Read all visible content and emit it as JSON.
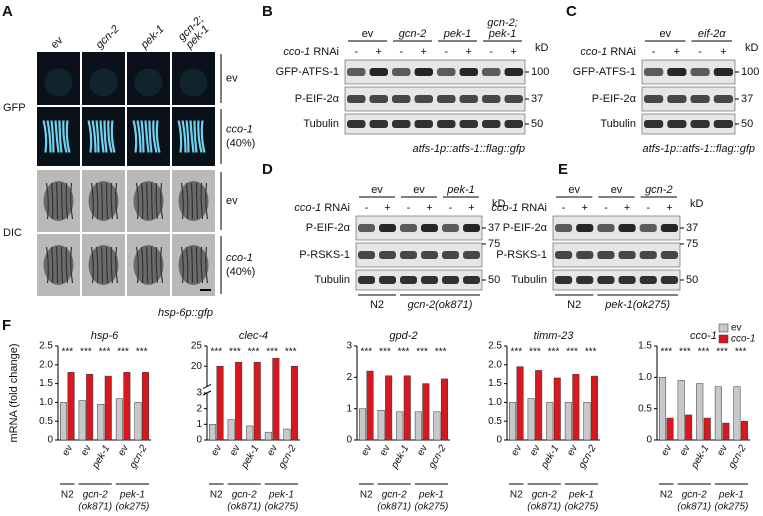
{
  "panel_a": {
    "label": "A",
    "columns": [
      [
        "ev"
      ],
      [
        "gcn-2"
      ],
      [
        "pek-1"
      ],
      [
        "gcn-2;",
        "pek-1"
      ]
    ],
    "channels": [
      "GFP",
      "DIC"
    ],
    "conditions": [
      {
        "name": "ev"
      },
      {
        "name": "cco-1",
        "note": "(40%)"
      }
    ],
    "footer": "hsp-6p::gfp"
  },
  "panel_b": {
    "label": "B",
    "genotypes": [
      [
        "ev"
      ],
      [
        "gcn-2"
      ],
      [
        "pek-1"
      ],
      [
        "gcn-2;",
        "pek-1"
      ]
    ],
    "rnai": {
      "gene": "cco-1",
      "text": "RNAi"
    },
    "lanes": [
      "-",
      "+",
      "-",
      "+",
      "-",
      "+",
      "-",
      "+"
    ],
    "kd": "kD",
    "rows": [
      {
        "name": "GFP-ATFS-1",
        "marker": 100
      },
      {
        "name": "P-EIF-2α",
        "marker": 37
      },
      {
        "name": "Tubulin",
        "marker": 50
      }
    ],
    "footer": "atfs-1p::atfs-1::flag::gfp"
  },
  "panel_c": {
    "label": "C",
    "genotypes": [
      [
        "ev"
      ],
      [
        "eif-2α"
      ]
    ],
    "rnai": {
      "gene": "cco-1",
      "text": "RNAi"
    },
    "lanes": [
      "-",
      "+",
      "-",
      "+"
    ],
    "kd": "kD",
    "rows": [
      {
        "name": "GFP-ATFS-1",
        "marker": 100
      },
      {
        "name": "P-EIF-2α",
        "marker": 37
      },
      {
        "name": "Tubulin",
        "marker": 50
      }
    ],
    "footer": "atfs-1p::atfs-1::flag::gfp"
  },
  "panel_d": {
    "label": "D",
    "genotypes": [
      [
        "ev"
      ],
      [
        "ev"
      ],
      [
        "pek-1"
      ]
    ],
    "rnai": {
      "gene": "cco-1",
      "text": "RNAi"
    },
    "lanes": [
      "-",
      "+",
      "-",
      "+",
      "-",
      "+"
    ],
    "kd": "kD",
    "rows": [
      {
        "name": "P-EIF-2α",
        "marker": 37
      },
      {
        "name": "P-RSKS-1",
        "marker": 75
      },
      {
        "name": "Tubulin",
        "marker": 50
      }
    ],
    "strains": [
      "N2",
      "gcn-2(ok871)"
    ]
  },
  "panel_e": {
    "label": "E",
    "genotypes": [
      [
        "ev"
      ],
      [
        "ev"
      ],
      [
        "gcn-2"
      ]
    ],
    "rnai": {
      "gene": "cco-1",
      "text": "RNAi"
    },
    "lanes": [
      "-",
      "+",
      "-",
      "+",
      "-",
      "+"
    ],
    "kd": "kD",
    "rows": [
      {
        "name": "P-EIF-2α",
        "marker": 37
      },
      {
        "name": "P-RSKS-1",
        "marker": 75
      },
      {
        "name": "Tubulin",
        "marker": 50
      }
    ],
    "strains": [
      "N2",
      "pek-1(ok275)"
    ]
  },
  "panel_f": {
    "label": "F"
  },
  "chart_data": [
    {
      "type": "bar",
      "title": "hsp-6",
      "ylabel": "mRNA (fold change)",
      "categories": [
        "ev",
        "ev",
        "pek-1",
        "ev",
        "gcn-2"
      ],
      "groups": [
        {
          "name": "N2"
        },
        {
          "name": "gcn-2",
          "allele": "(ok871)"
        },
        {
          "name": "pek-1",
          "allele": "(ok275)"
        }
      ],
      "series": [
        {
          "name": "ev",
          "color": "#c8c8c8",
          "values": [
            1.0,
            1.05,
            0.95,
            1.1,
            1.0
          ]
        },
        {
          "name": "cco-1",
          "color": "#d7191f",
          "values": [
            1.8,
            1.75,
            1.7,
            1.8,
            1.8
          ]
        }
      ],
      "significance": [
        "***",
        "***",
        "***",
        "***",
        "***"
      ],
      "ylim": [
        0,
        2.5
      ],
      "yticks": [
        0,
        0.5,
        {
          "value": 1,
          "label": "1.0"
        },
        1.5,
        {
          "value": 2,
          "label": "2.0"
        },
        2.5
      ]
    },
    {
      "type": "bar",
      "title": "clec-4",
      "categories": [
        "ev",
        "ev",
        "pek-1",
        "ev",
        "gcn-2"
      ],
      "groups": [
        {
          "name": "N2"
        },
        {
          "name": "gcn-2",
          "allele": "(ok871)"
        },
        {
          "name": "pek-1",
          "allele": "(ok275)"
        }
      ],
      "series": [
        {
          "name": "ev",
          "color": "#c8c8c8",
          "values": [
            1.0,
            1.3,
            0.9,
            0.5,
            0.7
          ]
        },
        {
          "name": "cco-1",
          "color": "#d7191f",
          "values": [
            20,
            21,
            21,
            22,
            20
          ]
        }
      ],
      "significance": [
        "***",
        "***",
        "***",
        "***",
        "***"
      ],
      "ylim": [
        0,
        25
      ],
      "ybreak": [
        3,
        15
      ],
      "yticks": [
        0,
        1,
        2,
        3,
        20,
        25
      ]
    },
    {
      "type": "bar",
      "title": "gpd-2",
      "categories": [
        "ev",
        "ev",
        "pek-1",
        "ev",
        "gcn-2"
      ],
      "groups": [
        {
          "name": "N2"
        },
        {
          "name": "gcn-2",
          "allele": "(ok871)"
        },
        {
          "name": "pek-1",
          "allele": "(ok275)"
        }
      ],
      "series": [
        {
          "name": "ev",
          "color": "#c8c8c8",
          "values": [
            1.0,
            0.95,
            0.9,
            0.9,
            0.9
          ]
        },
        {
          "name": "cco-1",
          "color": "#d7191f",
          "values": [
            2.2,
            2.05,
            2.05,
            1.8,
            1.95
          ]
        }
      ],
      "significance": [
        "***",
        "***",
        "***",
        "***",
        "***"
      ],
      "ylim": [
        0,
        3
      ],
      "yticks": [
        0,
        1,
        2,
        3
      ]
    },
    {
      "type": "bar",
      "title": "timm-23",
      "categories": [
        "ev",
        "ev",
        "pek-1",
        "ev",
        "gcn-2"
      ],
      "groups": [
        {
          "name": "N2"
        },
        {
          "name": "gcn-2",
          "allele": "(ok871)"
        },
        {
          "name": "pek-1",
          "allele": "(ok275)"
        }
      ],
      "series": [
        {
          "name": "ev",
          "color": "#c8c8c8",
          "values": [
            1.0,
            1.1,
            1.0,
            1.0,
            1.0
          ]
        },
        {
          "name": "cco-1",
          "color": "#d7191f",
          "values": [
            1.95,
            1.85,
            1.65,
            1.75,
            1.7
          ]
        }
      ],
      "significance": [
        "***",
        "***",
        "***",
        "***",
        "***"
      ],
      "ylim": [
        0,
        2.5
      ],
      "yticks": [
        0,
        0.5,
        {
          "value": 1,
          "label": "1.0"
        },
        1.5,
        {
          "value": 2,
          "label": "2.0"
        },
        2.5
      ]
    },
    {
      "type": "bar",
      "title": "cco-1",
      "legend": "upper right",
      "categories": [
        "ev",
        "ev",
        "pek-1",
        "ev",
        "gcn-2"
      ],
      "groups": [
        {
          "name": "N2"
        },
        {
          "name": "gcn-2",
          "allele": "(ok871)"
        },
        {
          "name": "pek-1",
          "allele": "(ok275)"
        }
      ],
      "series": [
        {
          "name": "ev",
          "color": "#c8c8c8",
          "values": [
            1.0,
            0.95,
            0.9,
            0.85,
            0.85
          ]
        },
        {
          "name": "cco-1",
          "color": "#d7191f",
          "values": [
            0.35,
            0.4,
            0.35,
            0.27,
            0.3
          ]
        }
      ],
      "significance": [
        "***",
        "***",
        "***",
        "***",
        "***"
      ],
      "ylim": [
        0,
        1.5
      ],
      "yticks": [
        0,
        0.5,
        {
          "value": 1,
          "label": "1.0"
        },
        1.5
      ]
    }
  ]
}
